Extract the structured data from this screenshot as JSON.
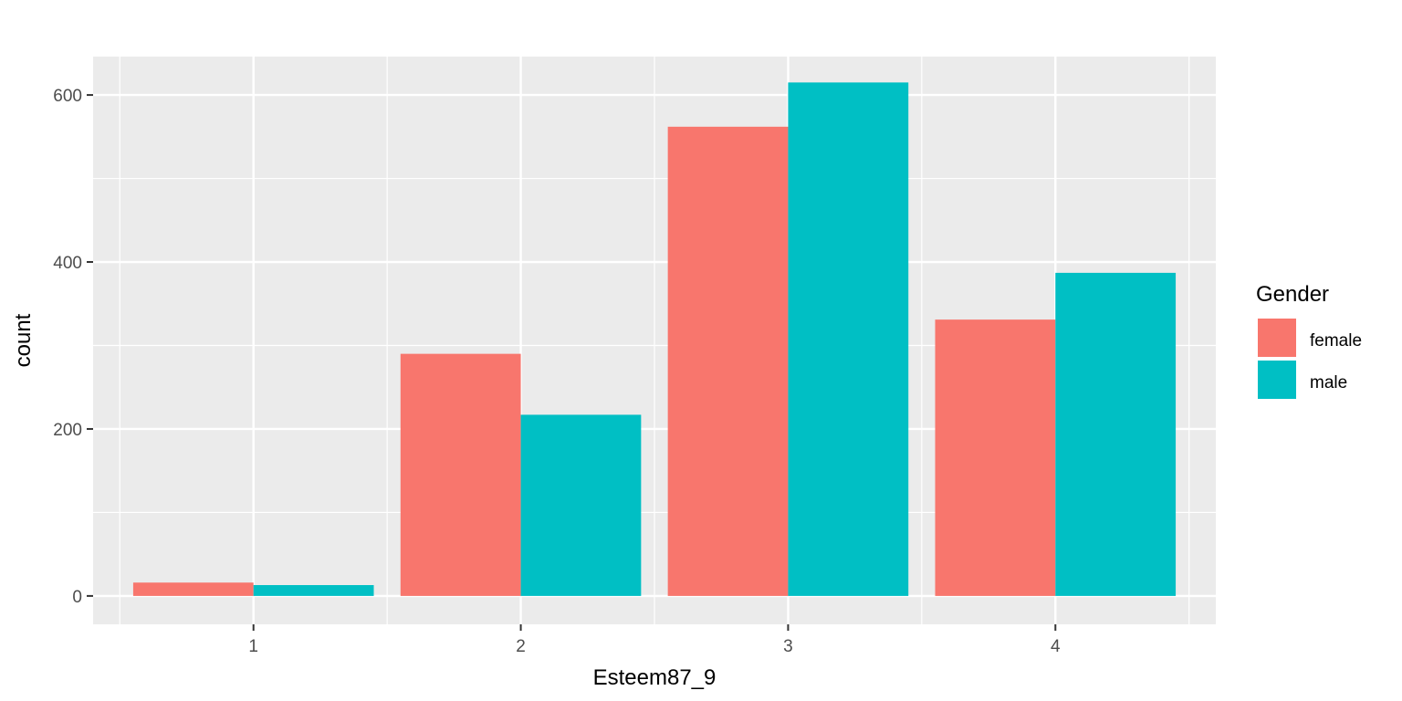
{
  "chart_data": {
    "type": "bar",
    "xlabel": "Esteem87_9",
    "ylabel": "count",
    "categories": [
      "1",
      "2",
      "3",
      "4"
    ],
    "series": [
      {
        "name": "female",
        "values": [
          16,
          290,
          562,
          331
        ],
        "color": "#F8766D"
      },
      {
        "name": "male",
        "values": [
          13,
          217,
          615,
          387
        ],
        "color": "#00BFC4"
      }
    ],
    "ylim": [
      -34,
      646
    ],
    "yticks": [
      0,
      200,
      400,
      600
    ],
    "grid": true,
    "legend": {
      "title": "Gender",
      "position": "right"
    }
  }
}
